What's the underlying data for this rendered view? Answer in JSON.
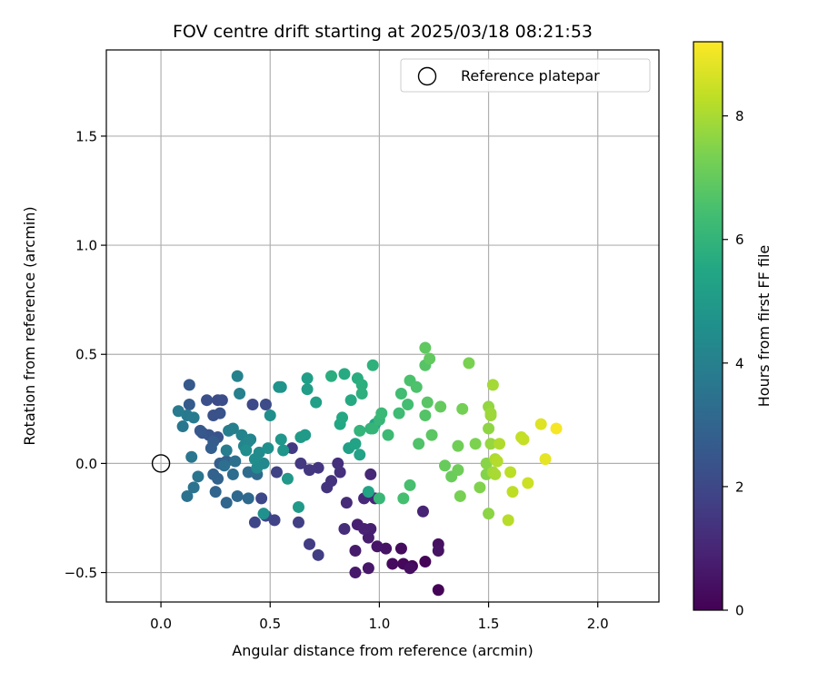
{
  "chart_data": {
    "type": "scatter",
    "title": "FOV centre drift starting at 2025/03/18 08:21:53",
    "xlabel": "Angular distance from reference (arcmin)",
    "ylabel": "Rotation from reference (arcmin)",
    "xlim": [
      -0.25,
      2.28
    ],
    "ylim": [
      -0.635,
      1.895
    ],
    "xticks": [
      0.0,
      0.5,
      1.0,
      1.5,
      2.0
    ],
    "xtick_labels": [
      "0.0",
      "0.5",
      "1.0",
      "1.5",
      "2.0"
    ],
    "yticks": [
      -0.5,
      0.0,
      0.5,
      1.0,
      1.5
    ],
    "ytick_labels": [
      "−0.5",
      "0.0",
      "0.5",
      "1.0",
      "1.5"
    ],
    "grid": true,
    "legend": {
      "placement": "top-right",
      "entries": [
        "Reference platepar"
      ]
    },
    "reference_point": {
      "x": 0.0,
      "y": 0.0,
      "label": "Reference platepar"
    },
    "colorbar": {
      "label": "Hours from first FF file",
      "range": [
        0,
        9.2
      ],
      "ticks": [
        0,
        2,
        4,
        6,
        8
      ],
      "tick_labels": [
        "0",
        "2",
        "4",
        "6",
        "8"
      ],
      "colormap": "viridis"
    },
    "points": [
      {
        "x": 1.27,
        "y": -0.58,
        "h": 0.05
      },
      {
        "x": 1.21,
        "y": -0.45,
        "h": 0.1
      },
      {
        "x": 1.15,
        "y": -0.47,
        "h": 0.15
      },
      {
        "x": 1.11,
        "y": -0.46,
        "h": 0.2
      },
      {
        "x": 1.06,
        "y": -0.46,
        "h": 0.25
      },
      {
        "x": 1.1,
        "y": -0.39,
        "h": 0.3
      },
      {
        "x": 1.14,
        "y": -0.48,
        "h": 0.35
      },
      {
        "x": 1.27,
        "y": -0.37,
        "h": 0.4
      },
      {
        "x": 1.27,
        "y": -0.4,
        "h": 0.45
      },
      {
        "x": 1.03,
        "y": -0.39,
        "h": 0.5
      },
      {
        "x": 0.99,
        "y": -0.38,
        "h": 0.55
      },
      {
        "x": 0.95,
        "y": -0.48,
        "h": 0.6
      },
      {
        "x": 0.89,
        "y": -0.5,
        "h": 0.65
      },
      {
        "x": 0.89,
        "y": -0.4,
        "h": 0.7
      },
      {
        "x": 0.95,
        "y": -0.34,
        "h": 0.75
      },
      {
        "x": 0.96,
        "y": -0.3,
        "h": 0.8
      },
      {
        "x": 0.9,
        "y": -0.28,
        "h": 0.85
      },
      {
        "x": 0.93,
        "y": -0.3,
        "h": 0.9
      },
      {
        "x": 1.2,
        "y": -0.22,
        "h": 0.95
      },
      {
        "x": 0.98,
        "y": -0.16,
        "h": 1.0
      },
      {
        "x": 0.96,
        "y": -0.05,
        "h": 1.05
      },
      {
        "x": 0.93,
        "y": -0.16,
        "h": 1.1
      },
      {
        "x": 0.85,
        "y": -0.18,
        "h": 1.15
      },
      {
        "x": 0.84,
        "y": -0.3,
        "h": 1.2
      },
      {
        "x": 0.81,
        "y": 0.0,
        "h": 1.25
      },
      {
        "x": 0.82,
        "y": -0.04,
        "h": 1.3
      },
      {
        "x": 0.78,
        "y": -0.08,
        "h": 1.35
      },
      {
        "x": 0.76,
        "y": -0.11,
        "h": 1.4
      },
      {
        "x": 0.72,
        "y": -0.02,
        "h": 1.45
      },
      {
        "x": 0.68,
        "y": -0.03,
        "h": 1.5
      },
      {
        "x": 0.64,
        "y": 0.0,
        "h": 1.55
      },
      {
        "x": 0.6,
        "y": 0.07,
        "h": 1.6
      },
      {
        "x": 0.68,
        "y": -0.37,
        "h": 1.65
      },
      {
        "x": 0.72,
        "y": -0.42,
        "h": 1.7
      },
      {
        "x": 0.63,
        "y": -0.27,
        "h": 1.75
      },
      {
        "x": 0.53,
        "y": -0.04,
        "h": 1.8
      },
      {
        "x": 0.52,
        "y": -0.26,
        "h": 1.85
      },
      {
        "x": 0.48,
        "y": -0.24,
        "h": 1.9
      },
      {
        "x": 0.43,
        "y": -0.27,
        "h": 1.95
      },
      {
        "x": 0.46,
        "y": -0.16,
        "h": 2.0
      },
      {
        "x": 0.42,
        "y": 0.27,
        "h": 2.05
      },
      {
        "x": 0.48,
        "y": 0.27,
        "h": 2.1
      },
      {
        "x": 0.26,
        "y": 0.29,
        "h": 2.15
      },
      {
        "x": 0.28,
        "y": 0.29,
        "h": 2.2
      },
      {
        "x": 0.21,
        "y": 0.29,
        "h": 2.25
      },
      {
        "x": 0.24,
        "y": 0.22,
        "h": 2.3
      },
      {
        "x": 0.27,
        "y": 0.23,
        "h": 2.35
      },
      {
        "x": 0.26,
        "y": 0.12,
        "h": 2.4
      },
      {
        "x": 0.22,
        "y": 0.13,
        "h": 2.45
      },
      {
        "x": 0.19,
        "y": 0.14,
        "h": 2.5
      },
      {
        "x": 0.18,
        "y": 0.15,
        "h": 2.55
      },
      {
        "x": 0.13,
        "y": 0.36,
        "h": 2.6
      },
      {
        "x": 0.13,
        "y": 0.27,
        "h": 2.65
      },
      {
        "x": 0.24,
        "y": 0.1,
        "h": 2.7
      },
      {
        "x": 0.23,
        "y": 0.07,
        "h": 2.75
      },
      {
        "x": 0.27,
        "y": 0.0,
        "h": 2.8
      },
      {
        "x": 0.3,
        "y": 0.01,
        "h": 2.85
      },
      {
        "x": 0.24,
        "y": -0.05,
        "h": 2.9
      },
      {
        "x": 0.26,
        "y": -0.07,
        "h": 2.95
      },
      {
        "x": 0.25,
        "y": -0.13,
        "h": 3.0
      },
      {
        "x": 0.3,
        "y": -0.18,
        "h": 3.05
      },
      {
        "x": 0.35,
        "y": -0.15,
        "h": 3.1
      },
      {
        "x": 0.4,
        "y": -0.16,
        "h": 3.15
      },
      {
        "x": 0.44,
        "y": -0.05,
        "h": 3.2
      },
      {
        "x": 0.4,
        "y": -0.04,
        "h": 3.25
      },
      {
        "x": 0.33,
        "y": -0.05,
        "h": 3.3
      },
      {
        "x": 0.29,
        "y": -0.01,
        "h": 3.35
      },
      {
        "x": 0.34,
        "y": 0.01,
        "h": 3.4
      },
      {
        "x": 0.12,
        "y": -0.15,
        "h": 3.45
      },
      {
        "x": 0.15,
        "y": -0.11,
        "h": 3.5
      },
      {
        "x": 0.17,
        "y": -0.06,
        "h": 3.55
      },
      {
        "x": 0.14,
        "y": 0.03,
        "h": 3.6
      },
      {
        "x": 0.1,
        "y": 0.17,
        "h": 3.65
      },
      {
        "x": 0.12,
        "y": 0.22,
        "h": 3.7
      },
      {
        "x": 0.08,
        "y": 0.24,
        "h": 3.75
      },
      {
        "x": 0.15,
        "y": 0.21,
        "h": 3.8
      },
      {
        "x": 0.3,
        "y": 0.06,
        "h": 3.85
      },
      {
        "x": 0.31,
        "y": 0.15,
        "h": 3.9
      },
      {
        "x": 0.33,
        "y": 0.16,
        "h": 3.95
      },
      {
        "x": 0.36,
        "y": 0.32,
        "h": 4.0
      },
      {
        "x": 0.35,
        "y": 0.4,
        "h": 4.05
      },
      {
        "x": 0.37,
        "y": 0.13,
        "h": 4.1
      },
      {
        "x": 0.41,
        "y": 0.11,
        "h": 4.15
      },
      {
        "x": 0.38,
        "y": 0.08,
        "h": 4.2
      },
      {
        "x": 0.4,
        "y": 0.1,
        "h": 4.25
      },
      {
        "x": 0.47,
        "y": 0.0,
        "h": 4.3
      },
      {
        "x": 0.44,
        "y": -0.02,
        "h": 4.35
      },
      {
        "x": 0.45,
        "y": 0.05,
        "h": 4.4
      },
      {
        "x": 0.43,
        "y": 0.02,
        "h": 4.45
      },
      {
        "x": 0.39,
        "y": 0.06,
        "h": 4.5
      },
      {
        "x": 0.5,
        "y": 0.22,
        "h": 4.55
      },
      {
        "x": 0.49,
        "y": 0.07,
        "h": 4.6
      },
      {
        "x": 0.47,
        "y": -0.23,
        "h": 4.65
      },
      {
        "x": 0.54,
        "y": 0.35,
        "h": 4.7
      },
      {
        "x": 0.55,
        "y": 0.35,
        "h": 4.75
      },
      {
        "x": 0.56,
        "y": 0.06,
        "h": 4.8
      },
      {
        "x": 0.55,
        "y": 0.11,
        "h": 4.85
      },
      {
        "x": 0.58,
        "y": -0.07,
        "h": 4.9
      },
      {
        "x": 0.63,
        "y": -0.2,
        "h": 4.95
      },
      {
        "x": 0.66,
        "y": 0.13,
        "h": 5.0
      },
      {
        "x": 0.64,
        "y": 0.12,
        "h": 5.05
      },
      {
        "x": 0.67,
        "y": 0.34,
        "h": 5.1
      },
      {
        "x": 0.67,
        "y": 0.39,
        "h": 5.15
      },
      {
        "x": 0.71,
        "y": 0.28,
        "h": 5.2
      },
      {
        "x": 0.86,
        "y": 0.07,
        "h": 5.25
      },
      {
        "x": 0.91,
        "y": 0.04,
        "h": 5.3
      },
      {
        "x": 0.89,
        "y": 0.09,
        "h": 5.35
      },
      {
        "x": 0.95,
        "y": -0.13,
        "h": 5.4
      },
      {
        "x": 0.98,
        "y": 0.18,
        "h": 5.45
      },
      {
        "x": 0.82,
        "y": 0.18,
        "h": 5.5
      },
      {
        "x": 0.83,
        "y": 0.21,
        "h": 5.55
      },
      {
        "x": 0.87,
        "y": 0.29,
        "h": 5.6
      },
      {
        "x": 0.84,
        "y": 0.41,
        "h": 5.65
      },
      {
        "x": 0.9,
        "y": 0.39,
        "h": 5.7
      },
      {
        "x": 0.78,
        "y": 0.4,
        "h": 5.75
      },
      {
        "x": 0.92,
        "y": 0.36,
        "h": 5.8
      },
      {
        "x": 0.92,
        "y": 0.32,
        "h": 5.85
      },
      {
        "x": 0.97,
        "y": 0.45,
        "h": 5.9
      },
      {
        "x": 0.96,
        "y": 0.16,
        "h": 5.95
      },
      {
        "x": 0.91,
        "y": 0.15,
        "h": 6.0
      },
      {
        "x": 0.97,
        "y": 0.16,
        "h": 6.05
      },
      {
        "x": 1.0,
        "y": 0.2,
        "h": 6.1
      },
      {
        "x": 1.0,
        "y": -0.16,
        "h": 6.15
      },
      {
        "x": 1.01,
        "y": 0.23,
        "h": 6.2
      },
      {
        "x": 1.04,
        "y": 0.13,
        "h": 6.25
      },
      {
        "x": 1.09,
        "y": 0.23,
        "h": 6.3
      },
      {
        "x": 1.1,
        "y": 0.32,
        "h": 6.35
      },
      {
        "x": 1.13,
        "y": 0.27,
        "h": 6.4
      },
      {
        "x": 1.11,
        "y": -0.16,
        "h": 6.45
      },
      {
        "x": 1.14,
        "y": -0.1,
        "h": 6.5
      },
      {
        "x": 1.14,
        "y": 0.38,
        "h": 6.55
      },
      {
        "x": 1.17,
        "y": 0.35,
        "h": 6.6
      },
      {
        "x": 1.18,
        "y": 0.09,
        "h": 6.65
      },
      {
        "x": 1.21,
        "y": 0.22,
        "h": 6.7
      },
      {
        "x": 1.21,
        "y": 0.45,
        "h": 6.75
      },
      {
        "x": 1.22,
        "y": 0.28,
        "h": 6.8
      },
      {
        "x": 1.24,
        "y": 0.13,
        "h": 6.85
      },
      {
        "x": 1.21,
        "y": 0.53,
        "h": 6.9
      },
      {
        "x": 1.23,
        "y": 0.48,
        "h": 6.95
      },
      {
        "x": 1.28,
        "y": 0.26,
        "h": 7.0
      },
      {
        "x": 1.3,
        "y": -0.01,
        "h": 7.05
      },
      {
        "x": 1.33,
        "y": -0.06,
        "h": 7.1
      },
      {
        "x": 1.36,
        "y": -0.03,
        "h": 7.15
      },
      {
        "x": 1.36,
        "y": 0.08,
        "h": 7.2
      },
      {
        "x": 1.38,
        "y": 0.25,
        "h": 7.25
      },
      {
        "x": 1.37,
        "y": -0.15,
        "h": 7.3
      },
      {
        "x": 1.41,
        "y": 0.46,
        "h": 7.35
      },
      {
        "x": 1.44,
        "y": 0.09,
        "h": 7.4
      },
      {
        "x": 1.46,
        "y": -0.11,
        "h": 7.45
      },
      {
        "x": 1.49,
        "y": -0.05,
        "h": 7.5
      },
      {
        "x": 1.49,
        "y": 0.0,
        "h": 7.55
      },
      {
        "x": 1.5,
        "y": -0.23,
        "h": 7.6
      },
      {
        "x": 1.5,
        "y": 0.16,
        "h": 7.65
      },
      {
        "x": 1.5,
        "y": 0.26,
        "h": 7.7
      },
      {
        "x": 1.51,
        "y": 0.09,
        "h": 7.75
      },
      {
        "x": 1.51,
        "y": 0.22,
        "h": 7.8
      },
      {
        "x": 1.51,
        "y": 0.23,
        "h": 7.85
      },
      {
        "x": 1.52,
        "y": -0.04,
        "h": 7.9
      },
      {
        "x": 1.52,
        "y": 0.36,
        "h": 7.95
      },
      {
        "x": 1.53,
        "y": -0.05,
        "h": 8.0
      },
      {
        "x": 1.53,
        "y": 0.02,
        "h": 8.05
      },
      {
        "x": 1.55,
        "y": 0.09,
        "h": 8.1
      },
      {
        "x": 1.54,
        "y": 0.01,
        "h": 8.15
      },
      {
        "x": 1.59,
        "y": -0.26,
        "h": 8.2
      },
      {
        "x": 1.6,
        "y": -0.04,
        "h": 8.25
      },
      {
        "x": 1.61,
        "y": -0.13,
        "h": 8.3
      },
      {
        "x": 1.65,
        "y": 0.12,
        "h": 8.35
      },
      {
        "x": 1.66,
        "y": 0.11,
        "h": 8.4
      },
      {
        "x": 1.68,
        "y": -0.09,
        "h": 8.5
      },
      {
        "x": 1.74,
        "y": 0.18,
        "h": 8.75
      },
      {
        "x": 1.76,
        "y": 0.02,
        "h": 8.85
      },
      {
        "x": 1.81,
        "y": 0.16,
        "h": 9.1
      }
    ]
  }
}
